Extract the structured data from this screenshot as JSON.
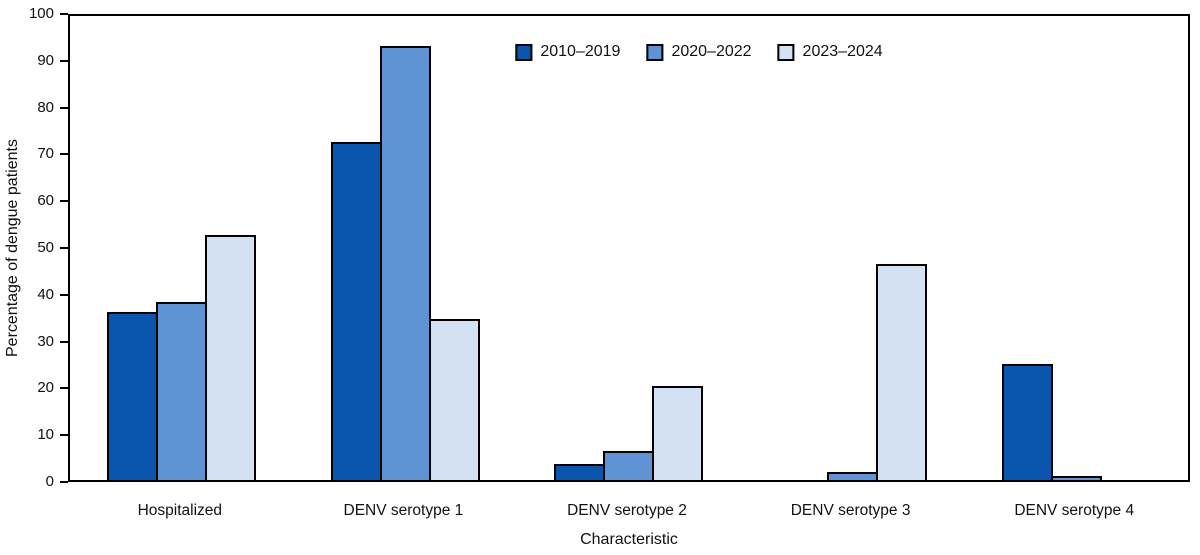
{
  "chart_data": {
    "type": "bar",
    "title": "",
    "categories": [
      "Hospitalized",
      "DENV serotype 1",
      "DENV serotype 2",
      "DENV serotype 3",
      "DENV serotype 4"
    ],
    "series": [
      {
        "name": "2010–2019",
        "color": "#0a56ae",
        "values": [
          35.7,
          72.4,
          3.1,
          0,
          24.6
        ]
      },
      {
        "name": "2020–2022",
        "color": "#5e93d4",
        "values": [
          38.0,
          93.2,
          5.9,
          1.2,
          0.3
        ]
      },
      {
        "name": "2023–2024",
        "color": "#d4e0f3",
        "values": [
          52.3,
          34.2,
          19.8,
          46.2,
          0
        ]
      }
    ],
    "xlabel": "Characteristic",
    "ylabel": "Percentage of dengue patients",
    "ylim": [
      0,
      100
    ],
    "yticks": [
      0,
      10,
      20,
      30,
      40,
      50,
      60,
      70,
      80,
      90,
      100
    ],
    "legend_position": "top-center",
    "grid": false,
    "bar_outline_color": "#000000",
    "axis_color": "#000000"
  }
}
